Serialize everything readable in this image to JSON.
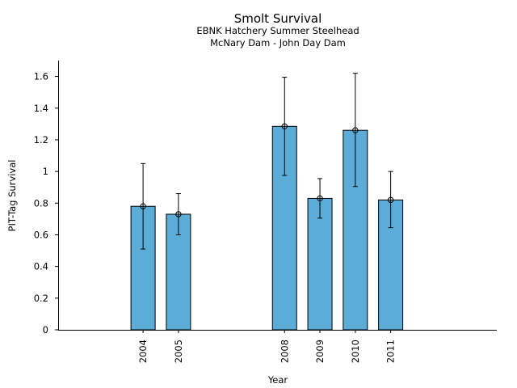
{
  "chart_data": {
    "type": "bar",
    "title": "Smolt Survival",
    "subtitles": [
      "EBNK Hatchery Summer Steelhead",
      "McNary Dam - John Day Dam"
    ],
    "xlabel": "Year",
    "ylabel": "PIT-Tag Survival",
    "x": [
      2004,
      2005,
      2008,
      2009,
      2010,
      2011
    ],
    "categories": [
      "2004",
      "2005",
      "2008",
      "2009",
      "2010",
      "2011"
    ],
    "values": [
      0.78,
      0.73,
      1.285,
      0.83,
      1.26,
      0.82
    ],
    "error_low": [
      0.51,
      0.6,
      0.975,
      0.705,
      0.905,
      0.645
    ],
    "error_high": [
      1.05,
      0.86,
      1.595,
      0.955,
      1.62,
      1.0
    ],
    "xlim": [
      2001.6,
      2014
    ],
    "ylim": [
      0,
      1.7
    ],
    "yticks": [
      0,
      0.2,
      0.4,
      0.6,
      0.8,
      1,
      1.2,
      1.4,
      1.6
    ],
    "ytick_labels": [
      "0",
      "0.2",
      "0.4",
      "0.6",
      "0.8",
      "1",
      "1.2",
      "1.4",
      "1.6"
    ],
    "bar_color": "#5badd7",
    "grid": false,
    "legend": "none"
  }
}
